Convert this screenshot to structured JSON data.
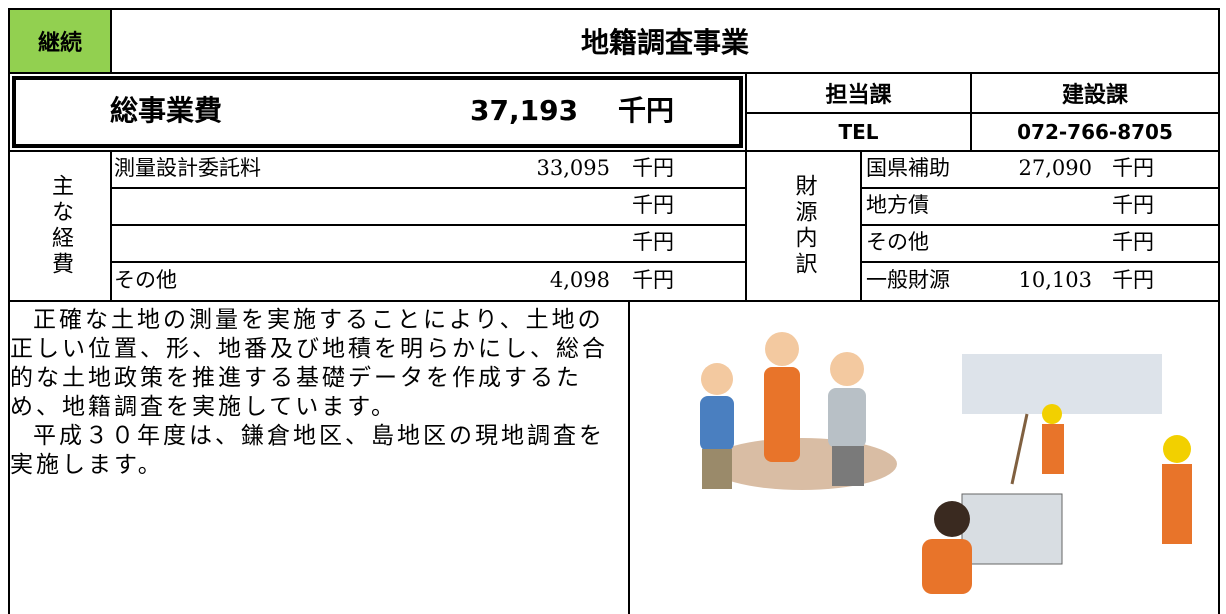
{
  "status": "継続",
  "title": "地籍調査事業",
  "total": {
    "label": "総事業費",
    "amount": "37,193",
    "unit": "千円"
  },
  "department": {
    "label": "担当課",
    "name": "建設課",
    "tel_label": "TEL",
    "tel": "072-766-8705"
  },
  "expenses": {
    "label": "主な経費",
    "rows": [
      {
        "name": "測量設計委託料",
        "amount": "33,095",
        "unit": "千円"
      },
      {
        "unit": "千円"
      },
      {
        "unit": "千円"
      },
      {
        "name": "その他",
        "amount": "4,098",
        "unit": "千円"
      }
    ]
  },
  "funding": {
    "label": "財源内訳",
    "rows": [
      {
        "name": "国県補助",
        "amount": "27,090",
        "unit": "千円"
      },
      {
        "name": "地方債",
        "unit": "千円"
      },
      {
        "name": "その他",
        "unit": "千円"
      },
      {
        "name": "一般財源",
        "amount": "10,103",
        "unit": "千円"
      }
    ]
  },
  "description": [
    "正確な土地の測量を実施することにより、土地の正しい位置、形、地番及び地積を明らかにし、総合的な土地政策を推進する基礎データを作成するため、地籍調査を実施しています。",
    "平成３０年度は、鎌倉地区、島地区の現地調査を実施します。"
  ]
}
